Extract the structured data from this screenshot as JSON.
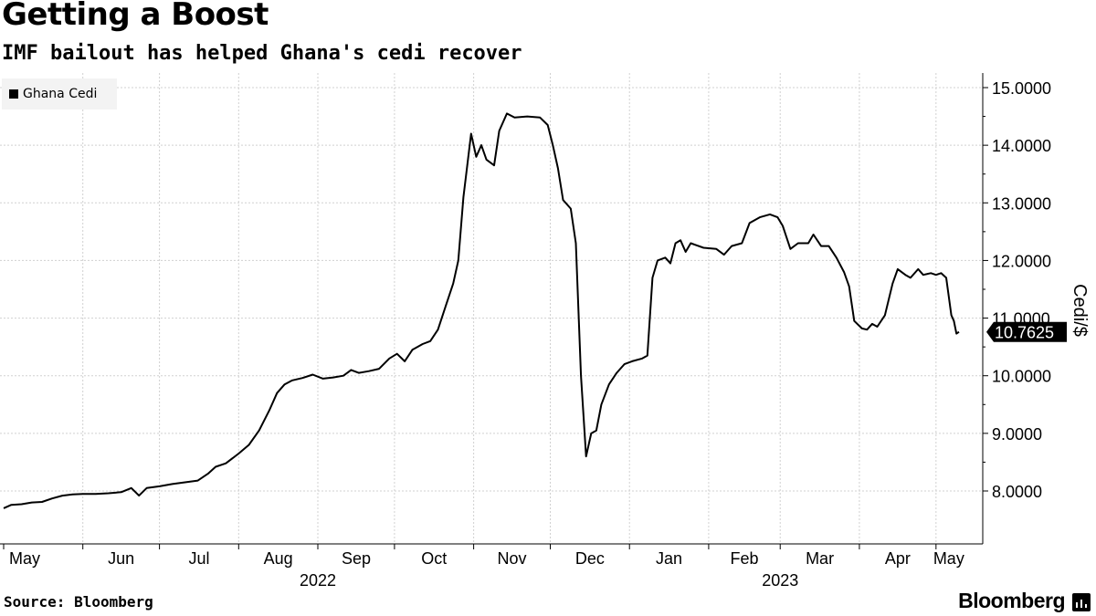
{
  "header": {
    "title": "Getting a Boost",
    "subtitle": "IMF bailout has helped Ghana's cedi recover"
  },
  "legend": {
    "label": "Ghana Cedi",
    "color": "#000000"
  },
  "footer": {
    "source": "Source: Bloomberg",
    "brand": "Bloomberg"
  },
  "chart_data": {
    "type": "line",
    "title": "Getting a Boost",
    "subtitle": "IMF bailout has helped Ghana's cedi recover",
    "ylabel": "Cedi/$",
    "xlabel": "",
    "ylim": [
      7.0,
      15.3
    ],
    "yticks": [
      8.0,
      9.0,
      10.0,
      11.0,
      12.0,
      13.0,
      14.0,
      15.0
    ],
    "ytick_labels": [
      "8.0000",
      "9.0000",
      "10.0000",
      "11.0000",
      "12.0000",
      "13.0000",
      "14.0000",
      "15.0000"
    ],
    "y_axis_position": "right",
    "grid": true,
    "last_value_label": "10.7625",
    "x_start": "2022-05-01",
    "x_end": "2023-05-10",
    "month_ticks": [
      {
        "label": "May",
        "date": "2022-05-01"
      },
      {
        "label": "Jun",
        "date": "2022-06-01"
      },
      {
        "label": "Jul",
        "date": "2022-07-01"
      },
      {
        "label": "Aug",
        "date": "2022-08-01"
      },
      {
        "label": "Sep",
        "date": "2022-09-01"
      },
      {
        "label": "Oct",
        "date": "2022-10-01"
      },
      {
        "label": "Nov",
        "date": "2022-11-01"
      },
      {
        "label": "Dec",
        "date": "2022-12-01"
      },
      {
        "label": "Jan",
        "date": "2023-01-01"
      },
      {
        "label": "Feb",
        "date": "2023-02-01"
      },
      {
        "label": "Mar",
        "date": "2023-03-01"
      },
      {
        "label": "Apr",
        "date": "2023-04-01"
      },
      {
        "label": "May",
        "date": "2023-05-01"
      }
    ],
    "year_labels": [
      {
        "label": "2022",
        "date": "2022-09-01"
      },
      {
        "label": "2023",
        "date": "2023-03-01"
      }
    ],
    "series": [
      {
        "name": "Ghana Cedi",
        "color": "#000000",
        "points": [
          [
            "2022-05-01",
            7.7
          ],
          [
            "2022-05-04",
            7.76
          ],
          [
            "2022-05-08",
            7.77
          ],
          [
            "2022-05-12",
            7.8
          ],
          [
            "2022-05-16",
            7.81
          ],
          [
            "2022-05-20",
            7.87
          ],
          [
            "2022-05-24",
            7.92
          ],
          [
            "2022-05-28",
            7.94
          ],
          [
            "2022-06-01",
            7.95
          ],
          [
            "2022-06-06",
            7.95
          ],
          [
            "2022-06-11",
            7.96
          ],
          [
            "2022-06-16",
            7.98
          ],
          [
            "2022-06-20",
            8.05
          ],
          [
            "2022-06-23",
            7.92
          ],
          [
            "2022-06-26",
            8.05
          ],
          [
            "2022-07-01",
            8.08
          ],
          [
            "2022-07-06",
            8.12
          ],
          [
            "2022-07-11",
            8.15
          ],
          [
            "2022-07-16",
            8.18
          ],
          [
            "2022-07-20",
            8.3
          ],
          [
            "2022-07-23",
            8.42
          ],
          [
            "2022-07-27",
            8.48
          ],
          [
            "2022-08-01",
            8.65
          ],
          [
            "2022-08-05",
            8.8
          ],
          [
            "2022-08-09",
            9.05
          ],
          [
            "2022-08-13",
            9.4
          ],
          [
            "2022-08-16",
            9.7
          ],
          [
            "2022-08-19",
            9.85
          ],
          [
            "2022-08-22",
            9.92
          ],
          [
            "2022-08-26",
            9.96
          ],
          [
            "2022-08-30",
            10.02
          ],
          [
            "2022-09-03",
            9.95
          ],
          [
            "2022-09-07",
            9.97
          ],
          [
            "2022-09-11",
            10.0
          ],
          [
            "2022-09-14",
            10.1
          ],
          [
            "2022-09-17",
            10.05
          ],
          [
            "2022-09-21",
            10.08
          ],
          [
            "2022-09-25",
            10.12
          ],
          [
            "2022-09-29",
            10.3
          ],
          [
            "2022-10-02",
            10.38
          ],
          [
            "2022-10-05",
            10.25
          ],
          [
            "2022-10-08",
            10.45
          ],
          [
            "2022-10-12",
            10.55
          ],
          [
            "2022-10-15",
            10.6
          ],
          [
            "2022-10-18",
            10.8
          ],
          [
            "2022-10-21",
            11.2
          ],
          [
            "2022-10-24",
            11.6
          ],
          [
            "2022-10-26",
            12.0
          ],
          [
            "2022-10-28",
            13.1
          ],
          [
            "2022-10-31",
            14.2
          ],
          [
            "2022-11-02",
            13.8
          ],
          [
            "2022-11-04",
            14.0
          ],
          [
            "2022-11-06",
            13.75
          ],
          [
            "2022-11-09",
            13.65
          ],
          [
            "2022-11-11",
            14.25
          ],
          [
            "2022-11-14",
            14.55
          ],
          [
            "2022-11-17",
            14.48
          ],
          [
            "2022-11-22",
            14.5
          ],
          [
            "2022-11-27",
            14.48
          ],
          [
            "2022-11-30",
            14.35
          ],
          [
            "2022-12-02",
            14.0
          ],
          [
            "2022-12-04",
            13.6
          ],
          [
            "2022-12-06",
            13.05
          ],
          [
            "2022-12-09",
            12.9
          ],
          [
            "2022-12-11",
            12.3
          ],
          [
            "2022-12-13",
            10.0
          ],
          [
            "2022-12-15",
            8.6
          ],
          [
            "2022-12-17",
            9.0
          ],
          [
            "2022-12-19",
            9.05
          ],
          [
            "2022-12-21",
            9.5
          ],
          [
            "2022-12-24",
            9.85
          ],
          [
            "2022-12-27",
            10.05
          ],
          [
            "2022-12-30",
            10.2
          ],
          [
            "2023-01-02",
            10.25
          ],
          [
            "2023-01-06",
            10.3
          ],
          [
            "2023-01-08",
            10.35
          ],
          [
            "2023-01-10",
            11.7
          ],
          [
            "2023-01-12",
            12.0
          ],
          [
            "2023-01-15",
            12.05
          ],
          [
            "2023-01-17",
            11.95
          ],
          [
            "2023-01-19",
            12.3
          ],
          [
            "2023-01-21",
            12.35
          ],
          [
            "2023-01-23",
            12.15
          ],
          [
            "2023-01-25",
            12.3
          ],
          [
            "2023-01-30",
            12.22
          ],
          [
            "2023-02-04",
            12.2
          ],
          [
            "2023-02-07",
            12.1
          ],
          [
            "2023-02-10",
            12.25
          ],
          [
            "2023-02-14",
            12.3
          ],
          [
            "2023-02-17",
            12.65
          ],
          [
            "2023-02-21",
            12.75
          ],
          [
            "2023-02-25",
            12.8
          ],
          [
            "2023-02-28",
            12.75
          ],
          [
            "2023-03-02",
            12.6
          ],
          [
            "2023-03-05",
            12.2
          ],
          [
            "2023-03-08",
            12.3
          ],
          [
            "2023-03-12",
            12.3
          ],
          [
            "2023-03-14",
            12.45
          ],
          [
            "2023-03-17",
            12.25
          ],
          [
            "2023-03-20",
            12.25
          ],
          [
            "2023-03-23",
            12.05
          ],
          [
            "2023-03-26",
            11.8
          ],
          [
            "2023-03-28",
            11.55
          ],
          [
            "2023-03-30",
            10.95
          ],
          [
            "2023-04-02",
            10.82
          ],
          [
            "2023-04-04",
            10.8
          ],
          [
            "2023-04-06",
            10.9
          ],
          [
            "2023-04-08",
            10.85
          ],
          [
            "2023-04-11",
            11.05
          ],
          [
            "2023-04-14",
            11.6
          ],
          [
            "2023-04-16",
            11.85
          ],
          [
            "2023-04-19",
            11.75
          ],
          [
            "2023-04-21",
            11.7
          ],
          [
            "2023-04-24",
            11.85
          ],
          [
            "2023-04-26",
            11.75
          ],
          [
            "2023-04-29",
            11.78
          ],
          [
            "2023-05-01",
            11.75
          ],
          [
            "2023-05-03",
            11.78
          ],
          [
            "2023-05-05",
            11.7
          ],
          [
            "2023-05-07",
            11.05
          ],
          [
            "2023-05-08",
            10.95
          ],
          [
            "2023-05-09",
            10.73
          ],
          [
            "2023-05-10",
            10.76
          ]
        ]
      }
    ]
  }
}
